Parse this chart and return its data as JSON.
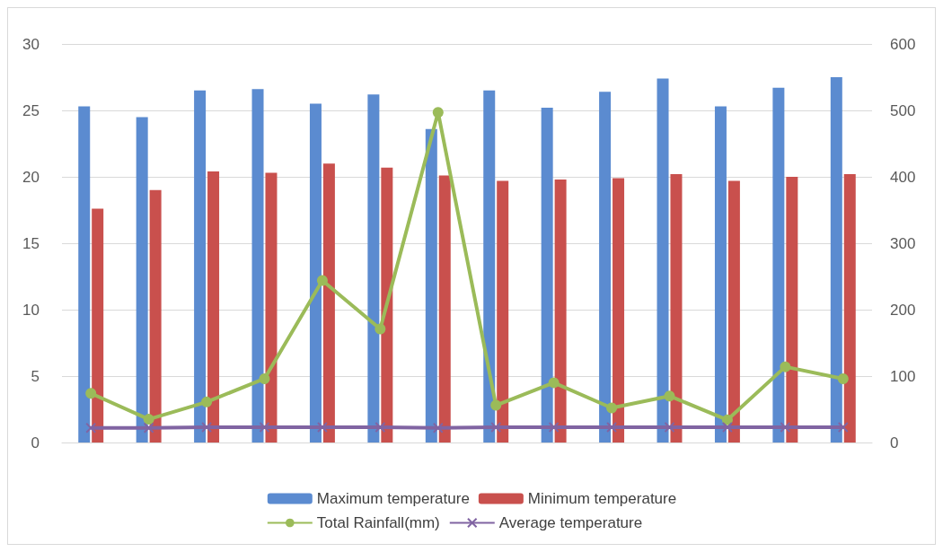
{
  "chart_data": {
    "type": "bar",
    "categories": [
      null,
      null,
      null,
      null,
      null,
      null,
      null,
      null,
      null,
      null,
      null,
      null,
      null,
      null
    ],
    "series": [
      {
        "name": "Maximum temperature",
        "color": "#5b8bd0",
        "values": [
          25.3,
          24.5,
          26.5,
          26.6,
          25.5,
          26.2,
          23.6,
          26.5,
          25.2,
          26.4,
          27.4,
          25.3,
          26.7,
          27.5
        ]
      },
      {
        "name": "Minimum temperature",
        "color": "#c9504d",
        "values": [
          17.6,
          19.0,
          20.4,
          20.3,
          21.0,
          20.7,
          20.1,
          19.7,
          19.8,
          19.9,
          20.2,
          19.7,
          20.0,
          20.2
        ]
      },
      {
        "name": "Total Rainfall(mm)",
        "type": "line",
        "axis": "y2",
        "marker": "circle",
        "color": "#9bbb59",
        "values": [
          74,
          35,
          61,
          96,
          244,
          171,
          497,
          56,
          90,
          52,
          70,
          34,
          114,
          96
        ]
      },
      {
        "name": "Average temperature",
        "type": "line",
        "axis": "y2",
        "marker": "cross",
        "color": "#8064a2",
        "values": [
          22,
          22,
          23,
          23,
          23,
          23,
          22,
          23,
          23,
          23,
          23,
          23,
          23,
          23
        ]
      }
    ],
    "ylim": [
      0,
      30
    ],
    "yticks": [
      0,
      5,
      10,
      15,
      20,
      25,
      30
    ],
    "y2lim": [
      0,
      600
    ],
    "y2ticks": [
      0,
      100,
      200,
      300,
      400,
      500,
      600
    ],
    "grid": "y",
    "legend": "bottom"
  }
}
